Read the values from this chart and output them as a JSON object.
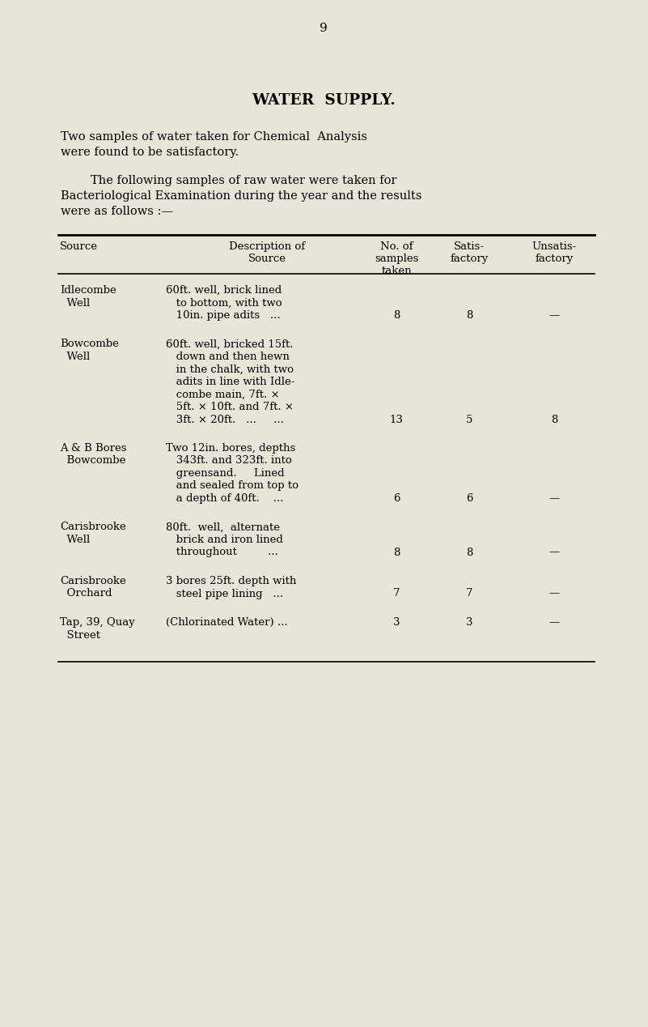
{
  "bg_color": "#e8e4d8",
  "page_number": "9",
  "title": "WATER  SUPPLY.",
  "intro_line1": "Two samples of water taken for Chemical  Analysis",
  "intro_line2": "were found to be satisfactory.",
  "intro_line3a": "        The following samples of raw water were taken for",
  "intro_line3b": "Bacteriological Examination during the year and the results",
  "intro_line3c": "were as follows :—",
  "rows": [
    {
      "source_line1": "Idlecombe",
      "source_line2": "  Well",
      "desc_lines": [
        "60ft. well, brick lined",
        "   to bottom, with two",
        "   10in. pipe adits   ..."
      ],
      "taken": "8",
      "satisfactory": "8",
      "unsatisfactory": "—"
    },
    {
      "source_line1": "Bowcombe",
      "source_line2": "  Well",
      "desc_lines": [
        "60ft. well, bricked 15ft.",
        "   down and then hewn",
        "   in the chalk, with two",
        "   adits in line with Idle-",
        "   combe main, 7ft. ×",
        "   5ft. × 10ft. and 7ft. ×",
        "   3ft. × 20ft.   ...     ..."
      ],
      "taken": "13",
      "satisfactory": "5",
      "unsatisfactory": "8"
    },
    {
      "source_line1": "A & B Bores",
      "source_line2": "  Bowcombe",
      "desc_lines": [
        "Two 12in. bores, depths",
        "   343ft. and 323ft. into",
        "   greensand.     Lined",
        "   and sealed from top to",
        "   a depth of 40ft.    ..."
      ],
      "taken": "6",
      "satisfactory": "6",
      "unsatisfactory": "—"
    },
    {
      "source_line1": "Carisbrooke",
      "source_line2": "  Well",
      "desc_lines": [
        "80ft.  well,  alternate",
        "   brick and iron lined",
        "   throughout         ..."
      ],
      "taken": "8",
      "satisfactory": "8",
      "unsatisfactory": "—"
    },
    {
      "source_line1": "Carisbrooke",
      "source_line2": "  Orchard",
      "desc_lines": [
        "3 bores 25ft. depth with",
        "   steel pipe lining   ..."
      ],
      "taken": "7",
      "satisfactory": "7",
      "unsatisfactory": "—"
    },
    {
      "source_line1": "Tap, 39, Quay",
      "source_line2": "  Street",
      "desc_lines": [
        "(Chlorinated Water) ..."
      ],
      "taken": "3",
      "satisfactory": "3",
      "unsatisfactory": "—"
    }
  ]
}
